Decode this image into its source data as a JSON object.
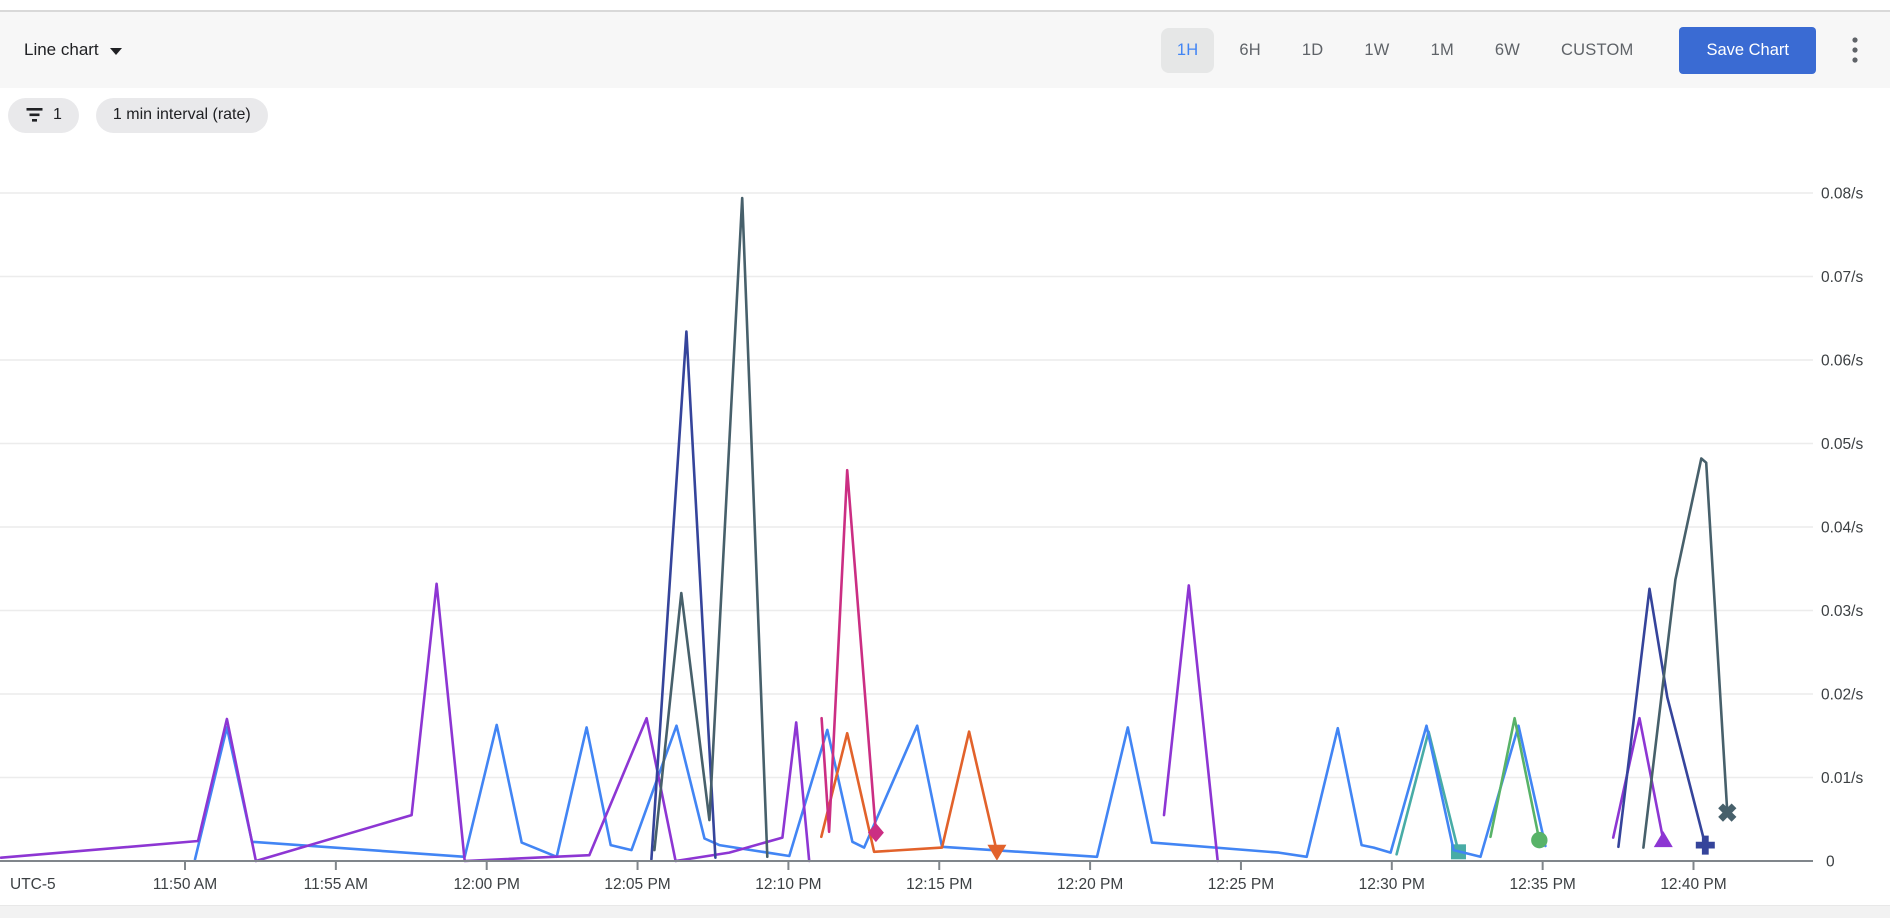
{
  "toolbar": {
    "chart_type_label": "Line chart",
    "time_ranges": [
      "1H",
      "6H",
      "1D",
      "1W",
      "1M",
      "6W",
      "CUSTOM"
    ],
    "selected_range": "1H",
    "save_label": "Save Chart"
  },
  "chips": {
    "filter_count": "1",
    "interval_label": "1 min interval (rate)"
  },
  "colors": {
    "accent_blue": "#4285f4",
    "save_button": "#3a6bd3",
    "axis": "#80868b",
    "gridline": "#ececec",
    "label_text": "#3c4043"
  },
  "chart_data": {
    "type": "line",
    "title": "",
    "unit": "/s",
    "grid": true,
    "legend": "none",
    "y_axis": {
      "side": "right",
      "range": [
        0,
        0.085
      ],
      "tick_values": [
        0.01,
        0.02,
        0.03,
        0.04,
        0.05,
        0.06,
        0.07,
        0.08
      ],
      "tick_labels": [
        "0.01/s",
        "0.02/s",
        "0.03/s",
        "0.04/s",
        "0.05/s",
        "0.06/s",
        "0.07/s",
        "0.08/s"
      ],
      "zero_label": "0"
    },
    "x_axis": {
      "timezone_label": "UTC-5",
      "unit": "minutes after 11:50 AM",
      "tick_minutes": [
        0,
        5,
        10,
        15,
        20,
        25,
        30,
        35,
        40,
        45,
        50
      ],
      "tick_labels": [
        "11:50 AM",
        "11:55 AM",
        "12:00 PM",
        "12:05 PM",
        "12:10 PM",
        "12:15 PM",
        "12:20 PM",
        "12:25 PM",
        "12:30 PM",
        "12:35 PM",
        "12:40 PM"
      ],
      "visible_range_minutes": [
        -6.1,
        54.0
      ]
    },
    "series": [
      {
        "name": "series-teal",
        "color": "#48aca6",
        "marker": "square",
        "segments": [
          [
            [
              40.16,
              0.0008
            ],
            [
              41.22,
              0.0155
            ],
            [
              42.21,
              0.0011
            ]
          ]
        ]
      },
      {
        "name": "series-blue",
        "color": "#4285f4",
        "marker": "none",
        "segments": [
          [
            [
              0.33,
              0.0002
            ],
            [
              1.39,
              0.016
            ],
            [
              2.22,
              0.0023
            ],
            [
              9.27,
              0.0005
            ],
            [
              10.33,
              0.0163
            ],
            [
              11.16,
              0.0022
            ],
            [
              12.32,
              0.0005
            ],
            [
              13.31,
              0.016
            ],
            [
              14.11,
              0.0019
            ],
            [
              14.8,
              0.0013
            ],
            [
              16.29,
              0.0162
            ],
            [
              17.22,
              0.0027
            ],
            [
              17.71,
              0.0019
            ],
            [
              20.03,
              0.0006
            ],
            [
              21.29,
              0.0157
            ],
            [
              22.12,
              0.0023
            ],
            [
              22.51,
              0.0016
            ],
            [
              24.27,
              0.0162
            ],
            [
              25.09,
              0.0017
            ],
            [
              30.23,
              0.0005
            ],
            [
              31.25,
              0.016
            ],
            [
              32.05,
              0.0022
            ],
            [
              36.25,
              0.001
            ],
            [
              37.18,
              0.0005
            ],
            [
              38.21,
              0.0159
            ],
            [
              39.0,
              0.0019
            ],
            [
              39.4,
              0.0016
            ],
            [
              39.96,
              0.001
            ],
            [
              41.15,
              0.0162
            ],
            [
              42.05,
              0.0013
            ],
            [
              42.94,
              0.0005
            ],
            [
              44.2,
              0.0162
            ],
            [
              45.09,
              0.0018
            ]
          ]
        ]
      },
      {
        "name": "series-green",
        "color": "#58b368",
        "marker": "circle",
        "segments": [
          [
            [
              43.27,
              0.0029
            ],
            [
              44.07,
              0.0171
            ],
            [
              44.89,
              0.0025
            ]
          ]
        ]
      },
      {
        "name": "series-orange",
        "color": "#e2622b",
        "marker": "triangle-down",
        "segments": [
          [
            [
              21.09,
              0.0029
            ],
            [
              21.95,
              0.0153
            ],
            [
              22.84,
              0.0011
            ],
            [
              25.09,
              0.0016
            ],
            [
              25.99,
              0.0155
            ],
            [
              26.91,
              0.0011
            ]
          ]
        ]
      },
      {
        "name": "series-pink",
        "color": "#cb2e83",
        "marker": "diamond",
        "segments": [
          [
            [
              21.1,
              0.0171
            ],
            [
              21.35,
              0.0035
            ],
            [
              21.95,
              0.0468
            ],
            [
              22.9,
              0.0034
            ]
          ]
        ]
      },
      {
        "name": "series-purple",
        "color": "#8d36d3",
        "marker": "triangle-up",
        "segments": [
          [
            [
              -6.1,
              0.0004
            ],
            [
              0.43,
              0.0024
            ],
            [
              1.39,
              0.017
            ],
            [
              2.35,
              0.0
            ],
            [
              7.51,
              0.0055
            ],
            [
              8.34,
              0.0332
            ],
            [
              9.27,
              0.0
            ],
            [
              13.4,
              0.0007
            ],
            [
              15.3,
              0.0171
            ],
            [
              16.26,
              0.0
            ],
            [
              18.04,
              0.001
            ],
            [
              19.8,
              0.0028
            ],
            [
              20.26,
              0.0166
            ],
            [
              20.69,
              0.0
            ]
          ],
          [
            [
              32.45,
              0.0055
            ],
            [
              33.27,
              0.033
            ],
            [
              34.23,
              0.0
            ]
          ],
          [
            [
              47.34,
              0.0028
            ],
            [
              48.21,
              0.0171
            ],
            [
              49.0,
              0.0025
            ]
          ]
        ]
      },
      {
        "name": "series-navy",
        "color": "#35449b",
        "marker": "plus",
        "segments": [
          [
            [
              15.46,
              0.0002
            ],
            [
              16.62,
              0.0634
            ],
            [
              17.58,
              0.0004
            ]
          ],
          [
            [
              47.51,
              0.0017
            ],
            [
              48.54,
              0.0326
            ],
            [
              49.13,
              0.0196
            ],
            [
              50.39,
              0.0019
            ]
          ]
        ]
      },
      {
        "name": "series-darkslate",
        "color": "#47606b",
        "marker": "x",
        "segments": [
          [
            [
              15.56,
              0.0013
            ],
            [
              16.45,
              0.0321
            ],
            [
              17.38,
              0.0049
            ],
            [
              18.47,
              0.0794
            ],
            [
              19.3,
              0.0005
            ]
          ],
          [
            [
              48.34,
              0.0016
            ],
            [
              49.4,
              0.0337
            ],
            [
              50.26,
              0.0482
            ],
            [
              50.42,
              0.0477
            ],
            [
              51.12,
              0.0058
            ]
          ]
        ]
      }
    ]
  }
}
